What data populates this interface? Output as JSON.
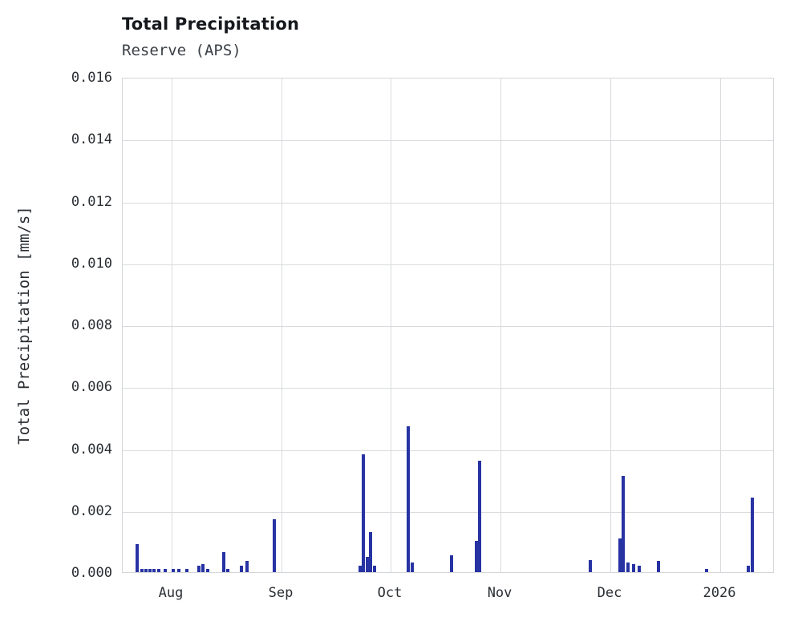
{
  "header": {
    "title": "Total Precipitation",
    "subtitle": "Reserve (APS)"
  },
  "chart_data": {
    "type": "bar",
    "title": "Total Precipitation",
    "subtitle": "Reserve (APS)",
    "xlabel": "",
    "ylabel": "Total Precipitation [mm/s]",
    "ylim": [
      0,
      0.016
    ],
    "grid": true,
    "legend": "none",
    "bar_color": "#2733a3",
    "y_ticks": [
      {
        "label": "0.000",
        "value": 0.0
      },
      {
        "label": "0.002",
        "value": 0.002
      },
      {
        "label": "0.004",
        "value": 0.004
      },
      {
        "label": "0.006",
        "value": 0.006
      },
      {
        "label": "0.008",
        "value": 0.008
      },
      {
        "label": "0.010",
        "value": 0.01
      },
      {
        "label": "0.012",
        "value": 0.012
      },
      {
        "label": "0.014",
        "value": 0.014
      },
      {
        "label": "0.016",
        "value": 0.016
      }
    ],
    "x_ticks": [
      {
        "label": "Aug",
        "pos": 0.075
      },
      {
        "label": "Sep",
        "pos": 0.2435
      },
      {
        "label": "Oct",
        "pos": 0.4108
      },
      {
        "label": "Nov",
        "pos": 0.5794
      },
      {
        "label": "Dec",
        "pos": 0.7478
      },
      {
        "label": "2026",
        "pos": 0.9164
      }
    ],
    "points": [
      {
        "date": "2025-07-22",
        "pos": 0.0221,
        "value": 0.0009
      },
      {
        "date": "2025-07-24",
        "pos": 0.0295,
        "value": 0.0001
      },
      {
        "date": "2025-07-25",
        "pos": 0.0357,
        "value": 0.0001
      },
      {
        "date": "2025-07-26",
        "pos": 0.0418,
        "value": 0.0001
      },
      {
        "date": "2025-07-27",
        "pos": 0.048,
        "value": 0.0001
      },
      {
        "date": "2025-07-28",
        "pos": 0.0553,
        "value": 0.0001
      },
      {
        "date": "2025-07-30",
        "pos": 0.0652,
        "value": 0.0001
      },
      {
        "date": "2025-08-01",
        "pos": 0.0775,
        "value": 0.0001
      },
      {
        "date": "2025-08-03",
        "pos": 0.0861,
        "value": 0.0001
      },
      {
        "date": "2025-08-05",
        "pos": 0.0984,
        "value": 0.0001
      },
      {
        "date": "2025-08-09",
        "pos": 0.1168,
        "value": 0.0002
      },
      {
        "date": "2025-08-10",
        "pos": 0.123,
        "value": 0.00025
      },
      {
        "date": "2025-08-11",
        "pos": 0.1304,
        "value": 0.0001
      },
      {
        "date": "2025-08-16",
        "pos": 0.155,
        "value": 0.00065
      },
      {
        "date": "2025-08-17",
        "pos": 0.1611,
        "value": 0.0001
      },
      {
        "date": "2025-08-21",
        "pos": 0.182,
        "value": 0.0002
      },
      {
        "date": "2025-08-22",
        "pos": 0.1906,
        "value": 0.00035
      },
      {
        "date": "2025-08-30",
        "pos": 0.2325,
        "value": 0.0017
      },
      {
        "date": "2025-09-23",
        "pos": 0.3641,
        "value": 0.0002
      },
      {
        "date": "2025-09-24",
        "pos": 0.369,
        "value": 0.0038
      },
      {
        "date": "2025-09-25",
        "pos": 0.3752,
        "value": 0.0005
      },
      {
        "date": "2025-09-26",
        "pos": 0.3801,
        "value": 0.0013
      },
      {
        "date": "2025-09-27",
        "pos": 0.3862,
        "value": 0.0002
      },
      {
        "date": "2025-10-06",
        "pos": 0.4379,
        "value": 0.0047
      },
      {
        "date": "2025-10-07",
        "pos": 0.444,
        "value": 0.0003
      },
      {
        "date": "2025-10-19",
        "pos": 0.5043,
        "value": 0.00055
      },
      {
        "date": "2025-10-26",
        "pos": 0.5424,
        "value": 0.001
      },
      {
        "date": "2025-10-27",
        "pos": 0.5473,
        "value": 0.0036
      },
      {
        "date": "2025-11-27",
        "pos": 0.7171,
        "value": 0.0004
      },
      {
        "date": "2025-12-04",
        "pos": 0.7626,
        "value": 0.0011
      },
      {
        "date": "2025-12-05",
        "pos": 0.7675,
        "value": 0.0031
      },
      {
        "date": "2025-12-06",
        "pos": 0.7749,
        "value": 0.0003
      },
      {
        "date": "2025-12-08",
        "pos": 0.7835,
        "value": 0.00025
      },
      {
        "date": "2025-12-09",
        "pos": 0.7921,
        "value": 0.0002
      },
      {
        "date": "2025-12-15",
        "pos": 0.8216,
        "value": 0.00035
      },
      {
        "date": "2025-12-28",
        "pos": 0.8954,
        "value": 0.0001
      },
      {
        "date": "2026-01-09",
        "pos": 0.9594,
        "value": 0.0002
      },
      {
        "date": "2026-01-10",
        "pos": 0.9656,
        "value": 0.0024
      }
    ]
  }
}
